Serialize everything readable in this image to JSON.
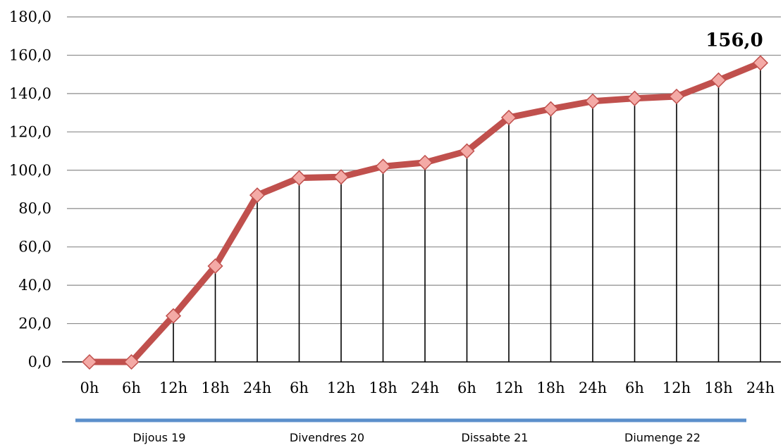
{
  "chart_data": {
    "type": "line",
    "categories": [
      "0h",
      "6h",
      "12h",
      "18h",
      "24h",
      "6h",
      "12h",
      "18h",
      "24h",
      "6h",
      "12h",
      "18h",
      "24h",
      "6h",
      "12h",
      "18h",
      "24h"
    ],
    "series": [
      {
        "values": [
          0,
          0,
          24,
          50,
          87,
          96,
          96.5,
          102,
          104,
          110,
          127.5,
          132,
          136,
          137.5,
          138.5,
          147,
          156
        ],
        "color": "#c0504d",
        "marker_color": "#f4aaa6"
      }
    ],
    "ylim": [
      0,
      180
    ],
    "yticks": [
      "0,0",
      "20,0",
      "40,0",
      "60,0",
      "80,0",
      "100,0",
      "120,0",
      "140,0",
      "160,0",
      "180,0"
    ],
    "yticks_values": [
      0,
      20,
      40,
      60,
      80,
      100,
      120,
      140,
      160,
      180
    ],
    "grid": true,
    "drop_lines": true,
    "groups": [
      {
        "label": "Dijous 19",
        "start": 0,
        "end": 4
      },
      {
        "label": "Divendres 20",
        "start": 4,
        "end": 8
      },
      {
        "label": "Dissabte 21",
        "start": 8,
        "end": 12
      },
      {
        "label": "Diumenge 22",
        "start": 12,
        "end": 16
      }
    ],
    "group_bar_color": "#5b8fcb",
    "annotation": {
      "text": "156,0",
      "index": 16
    },
    "title": "",
    "xlabel": "",
    "ylabel": ""
  }
}
